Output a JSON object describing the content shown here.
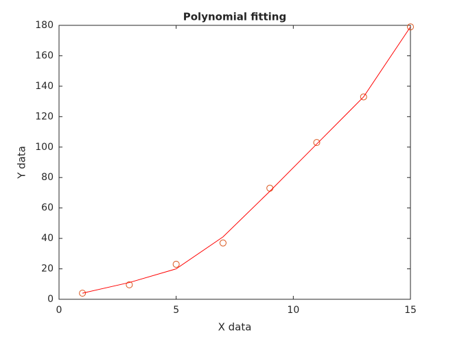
{
  "chart_data": {
    "type": "line",
    "title": "Polynomial fitting",
    "x_label": "X data",
    "y_label": "Y data",
    "x": [
      1,
      3,
      5,
      7,
      9,
      11,
      13,
      15
    ],
    "series": [
      {
        "mode": "markers",
        "color": "#d95319",
        "values": [
          4,
          9.5,
          23,
          37,
          73,
          103,
          133,
          179
        ]
      },
      {
        "mode": "line",
        "color": "#ff0000",
        "values": [
          4,
          11,
          20,
          41,
          71,
          102,
          133,
          179
        ]
      }
    ],
    "xlim": [
      0,
      15
    ],
    "xticks": [
      0,
      5,
      10,
      15
    ],
    "ylim": [
      0,
      180
    ],
    "yticks": [
      0,
      20,
      40,
      60,
      80,
      100,
      120,
      140,
      160,
      180
    ],
    "grid": false,
    "box": true
  }
}
